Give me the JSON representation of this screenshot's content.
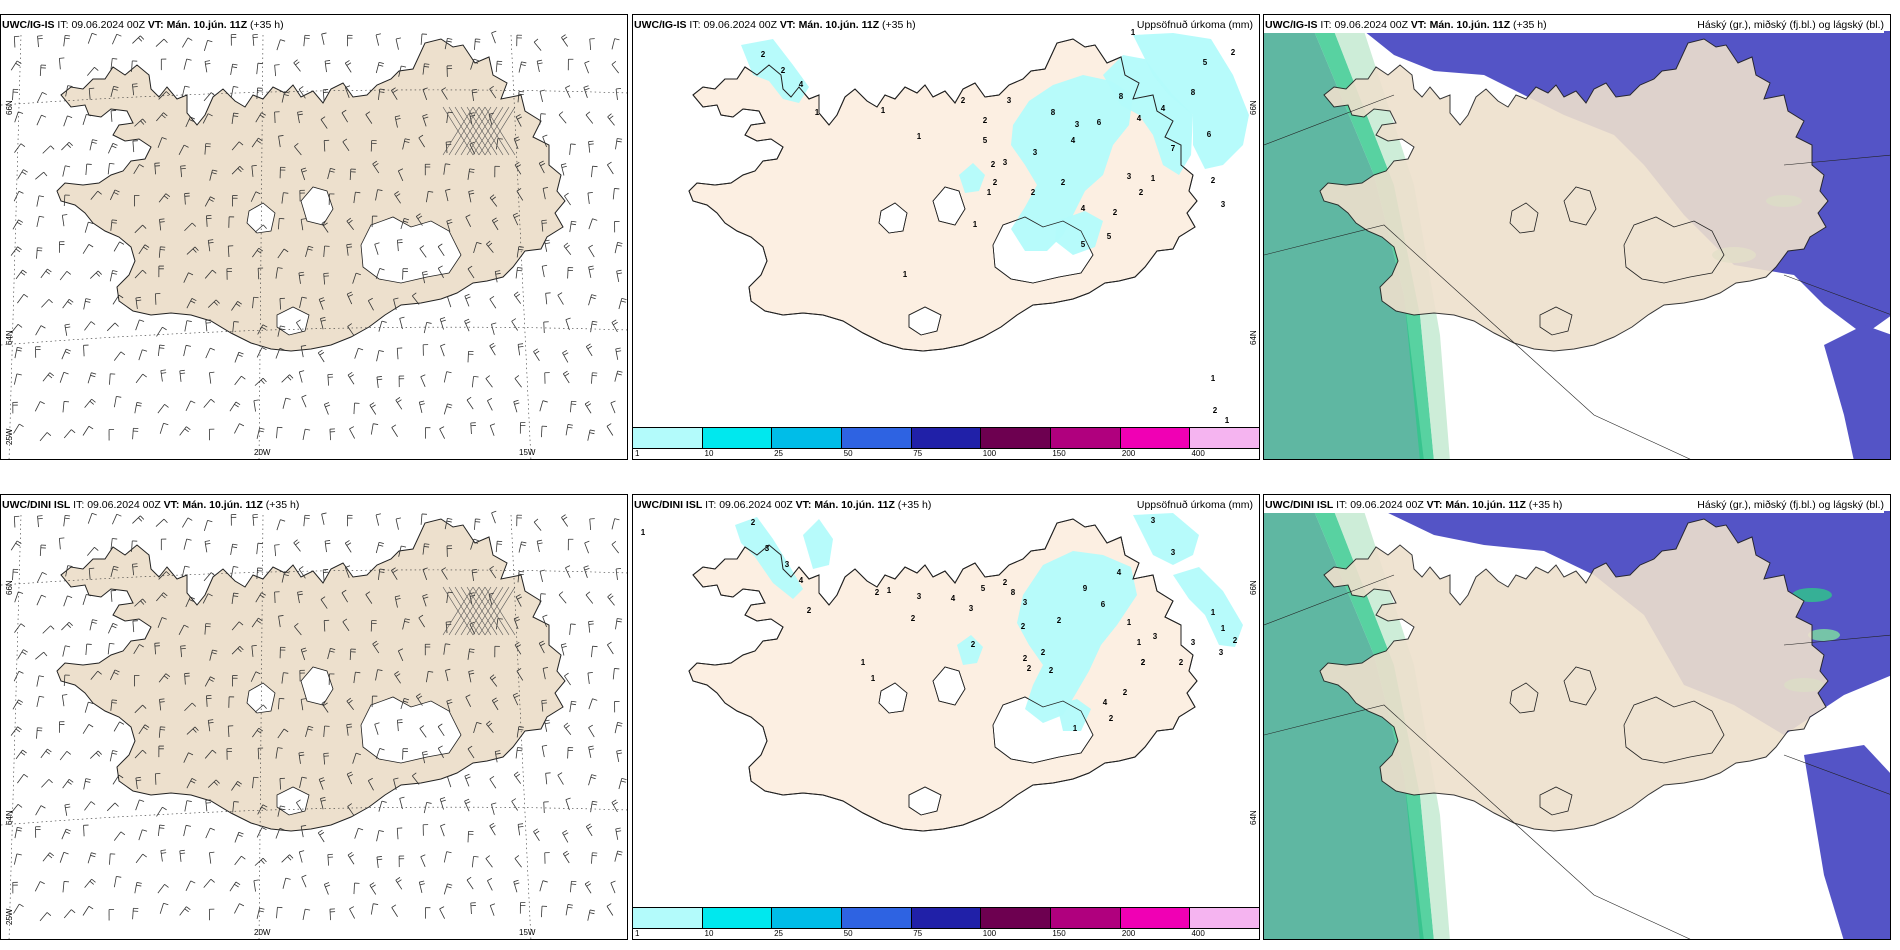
{
  "headers": {
    "ig": {
      "model": "UWC/IG-IS",
      "it_label": "IT:",
      "it": "09.06.2024 00Z",
      "vt_label": "VT:",
      "vt": "Mán. 10.jún. 11Z",
      "lead": "(+35 h)"
    },
    "dini": {
      "model": "UWC/DINI ISL",
      "it_label": "IT:",
      "it": "09.06.2024 00Z",
      "vt_label": "VT:",
      "vt": "Mán. 10.jún. 11Z",
      "lead": "(+35 h)"
    }
  },
  "precip": {
    "title": "Uppsöfnuð úrkoma (mm)",
    "levels": [
      "1",
      "10",
      "25",
      "50",
      "75",
      "100",
      "150",
      "200",
      "400"
    ],
    "colors": [
      "#b3fbfb",
      "#00e8ee",
      "#00bde8",
      "#2e63e2",
      "#2020a8",
      "#6d0050",
      "#b0007e",
      "#f000b4",
      "#f5b4f0"
    ]
  },
  "cloud": {
    "title": "Háský (gr.), miðský (fj.bl.) og lágský (bl.)",
    "colors": {
      "high": "#5fb7a2",
      "mid": "#5454c6",
      "low": "#ffffff",
      "land": "#eee0cd"
    }
  },
  "axes": {
    "lat_a": "66N",
    "lat_b": "64N",
    "lon_a": "20W",
    "lon_b": "15W",
    "lon_c": "25W"
  },
  "colors": {
    "land": "#ede0cd",
    "ocean": "#ffffff"
  }
}
